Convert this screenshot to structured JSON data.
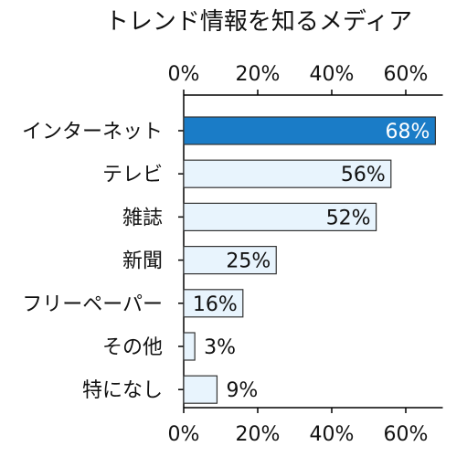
{
  "chart_data": {
    "type": "bar",
    "orientation": "horizontal",
    "title": "トレンド情報を知るメディア",
    "categories": [
      "インターネット",
      "テレビ",
      "雑誌",
      "新聞",
      "フリーペーパー",
      "その他",
      "特になし"
    ],
    "values": [
      68,
      56,
      52,
      25,
      16,
      3,
      9
    ],
    "value_labels": [
      "68%",
      "56%",
      "52%",
      "25%",
      "16%",
      "3%",
      "9%"
    ],
    "xlim": [
      0,
      70
    ],
    "xticks": [
      0,
      20,
      40,
      60
    ],
    "xtick_labels": [
      "0%",
      "20%",
      "40%",
      "60%"
    ],
    "axis_top": true,
    "axis_bottom": true,
    "grid": false,
    "colors": {
      "highlight_bar": "#1a7cc7",
      "bar": "#e8f4fd",
      "bar_stroke": "#333333",
      "highlight_label": "#ffffff",
      "label": "#111111"
    }
  }
}
